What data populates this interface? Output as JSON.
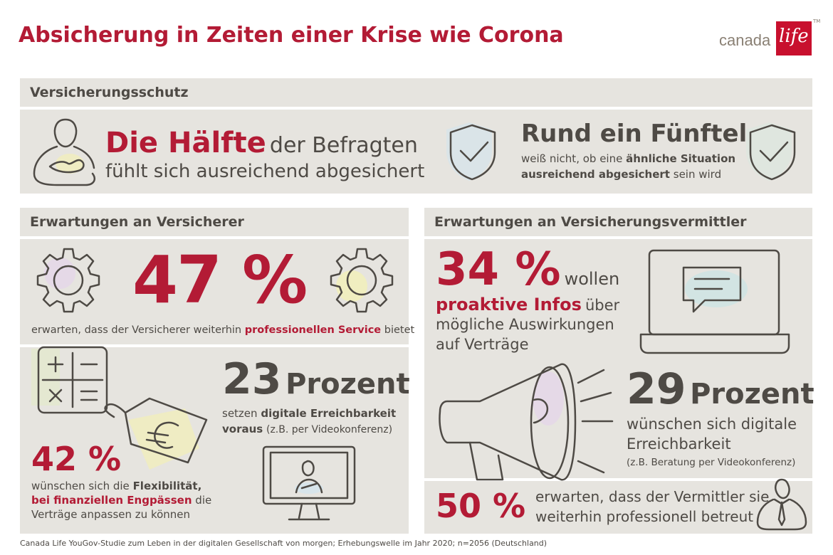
{
  "title": "Absicherung in Zeiten einer Krise wie Corona",
  "logo": {
    "word": "canada",
    "script": "life",
    "tm": "TM"
  },
  "section_insurance": {
    "header": "Versicherungsschutz",
    "half": {
      "highlight": "Die Hälfte",
      "rest": "der Befragten",
      "line2": "fühlt sich ausreichend abgesichert"
    },
    "fifth": {
      "highlight": "Rund ein Fünftel",
      "line1_pre": "weiß nicht, ob eine",
      "line1_bold": "ähnliche Situation",
      "line2_bold": "ausreichend abgesichert",
      "line2_post": "sein wird"
    }
  },
  "section_insurers": {
    "header": "Erwartungen an Versicherer",
    "stat47": {
      "value": "47 %",
      "pre": "erwarten, dass der Versicherer weiterhin",
      "bold": "professionellen Service",
      "post": "bietet"
    },
    "stat23": {
      "value": "23",
      "unit": "Prozent",
      "pre": "setzen",
      "bold": "digitale Erreichbarkeit",
      "bold2": "voraus",
      "post": "(z.B. per Videokonferenz)"
    },
    "stat42": {
      "value": "42 %",
      "pre": "wünschen sich die",
      "bold": "Flexibilität,",
      "bold2": "bei finanziellen Engpässen",
      "post": "die",
      "line3": "Verträge anpassen zu können"
    }
  },
  "section_brokers": {
    "header": "Erwartungen an Versicherungsvermittler",
    "stat34": {
      "value": "34 %",
      "post1": "wollen",
      "bold": "proaktive Infos",
      "post2": "über",
      "line3": "mögliche Auswirkungen",
      "line4": "auf Verträge"
    },
    "stat29": {
      "value": "29",
      "unit": "Prozent",
      "line1": "wünschen sich digitale",
      "line2": "Erreichbarkeit",
      "note": "(z.B. Beratung per Videokonferenz)"
    },
    "stat50": {
      "value": "50 %",
      "line1": "erwarten, dass der Vermittler sie",
      "line2": "weiterhin professionell betreut"
    }
  },
  "footnote": "Canada Life YouGov-Studie zum Leben in der digitalen Gesellschaft von morgen; Erhebungswelle im Jahr 2020; n=2056 (Deutschland)",
  "colors": {
    "accent": "#b31b35",
    "panel": "#e6e4df",
    "text": "#4e4a45"
  }
}
